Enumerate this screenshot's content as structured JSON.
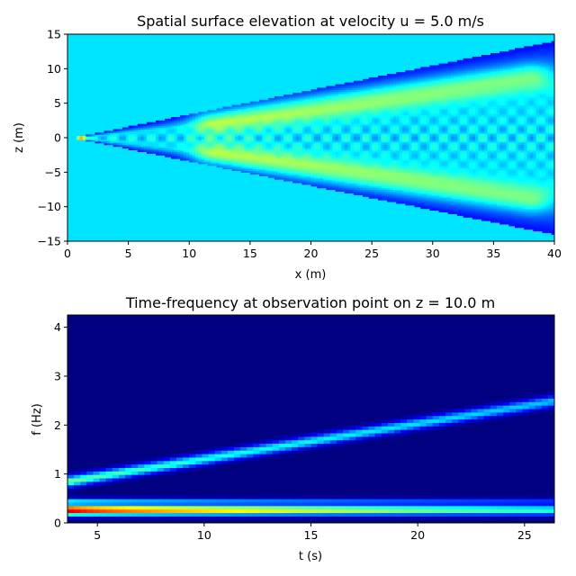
{
  "chart_data": [
    {
      "type": "heatmap",
      "title": "Spatial surface elevation at velocity u = 5.0 m/s",
      "xlabel": "x (m)",
      "ylabel": "z (m)",
      "xlim": [
        0,
        40
      ],
      "ylim": [
        -15,
        15
      ],
      "xticks": [
        0,
        5,
        10,
        15,
        20,
        25,
        30,
        35,
        40
      ],
      "yticks": [
        -15,
        -10,
        -5,
        0,
        5,
        10,
        15
      ],
      "xtick_labels": [
        "0",
        "5",
        "10",
        "15",
        "20",
        "25",
        "30",
        "35",
        "40"
      ],
      "ytick_labels": [
        "−15",
        "−10",
        "−5",
        "0",
        "5",
        "10",
        "15"
      ],
      "colormap": "jet",
      "background_level": 0.35,
      "wake": {
        "apex": [
          0.5,
          0
        ],
        "half_angle_deg": 19.5,
        "transverse_wavelength_m": 1.6,
        "bright_arms": [
          {
            "from": [
              12,
              2.5
            ],
            "to": [
              38,
              9
            ]
          },
          {
            "from": [
              12,
              -2.5
            ],
            "to": [
              38,
              -9
            ]
          }
        ],
        "dark_edge_band": true,
        "peak": {
          "x": 1,
          "z": 0,
          "level": 0.75
        }
      }
    },
    {
      "type": "heatmap",
      "title": "Time-frequency at observation point on z = 10.0 m",
      "xlabel": "t (s)",
      "ylabel": "f (Hz)",
      "xlim": [
        3.6,
        26.4
      ],
      "ylim": [
        0,
        4.25
      ],
      "xticks": [
        5,
        10,
        15,
        20,
        25
      ],
      "yticks": [
        0,
        1,
        2,
        3,
        4
      ],
      "xtick_labels": [
        "5",
        "10",
        "15",
        "20",
        "25"
      ],
      "ytick_labels": [
        "0",
        "1",
        "2",
        "3",
        "4"
      ],
      "colormap": "jet",
      "background_level": 0.0,
      "bands": [
        {
          "name": "low-frequency",
          "t": [
            3.6,
            26.4
          ],
          "f": [
            0.27,
            0.27
          ],
          "f_width": 0.1,
          "level_start": 1.0,
          "level_end": 0.42
        },
        {
          "name": "low-frequency-upper",
          "t": [
            3.6,
            26.4
          ],
          "f": [
            0.43,
            0.43
          ],
          "f_width": 0.07,
          "level_start": 0.45,
          "level_end": 0.2
        },
        {
          "name": "dispersive",
          "t": [
            3.6,
            26.4
          ],
          "f": [
            0.85,
            2.5
          ],
          "f_width": 0.11,
          "level_start": 0.5,
          "level_end": 0.32
        }
      ]
    }
  ]
}
